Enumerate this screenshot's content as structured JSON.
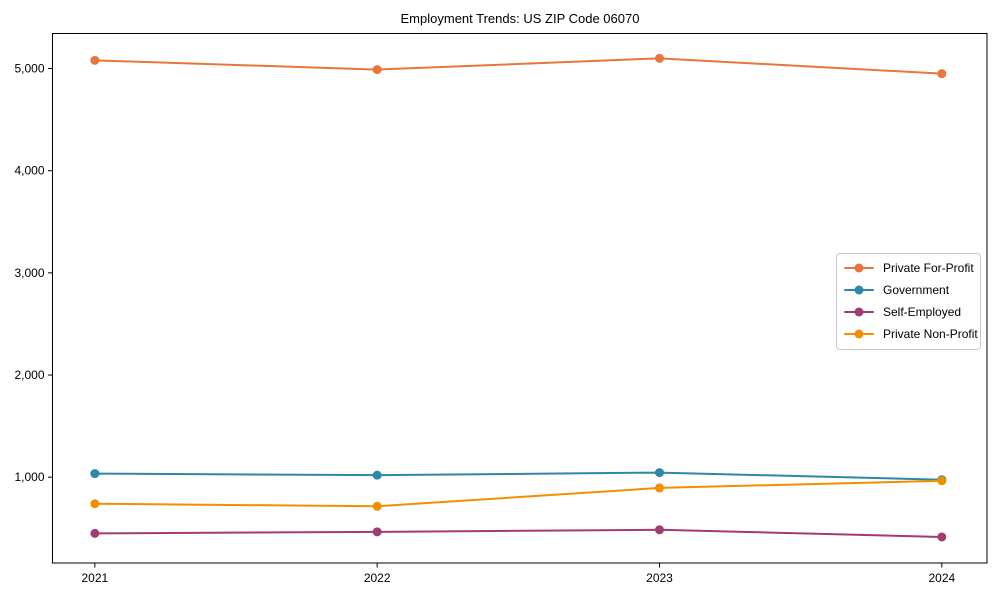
{
  "title": "Employment Trends: US ZIP Code 06070",
  "chart_data": {
    "type": "line",
    "title": "Employment Trends: US ZIP Code 06070",
    "x_labels": [
      "2021",
      "2022",
      "2023",
      "2024"
    ],
    "x_values": [
      2021,
      2022,
      2023,
      2024
    ],
    "y_tick_values": [
      1000,
      2000,
      3000,
      4000,
      5000
    ],
    "y_tick_labels": [
      "1,000",
      "2,000",
      "3,000",
      "4,000",
      "5,000"
    ],
    "xlim": [
      2020.85,
      2024.16
    ],
    "ylim": [
      160,
      5343
    ],
    "grid": false,
    "legend_position": "center-right",
    "marker": "circle",
    "series": [
      {
        "name": "Private For-Profit",
        "color": "#E8763C",
        "values": [
          5080,
          4990,
          5100,
          4950
        ]
      },
      {
        "name": "Government",
        "color": "#2E86AB",
        "values": [
          1035,
          1020,
          1045,
          975
        ]
      },
      {
        "name": "Self-Employed",
        "color": "#A23B72",
        "values": [
          450,
          465,
          485,
          415
        ]
      },
      {
        "name": "Private Non-Profit",
        "color": "#F18F01",
        "values": [
          740,
          715,
          895,
          965
        ]
      }
    ]
  }
}
